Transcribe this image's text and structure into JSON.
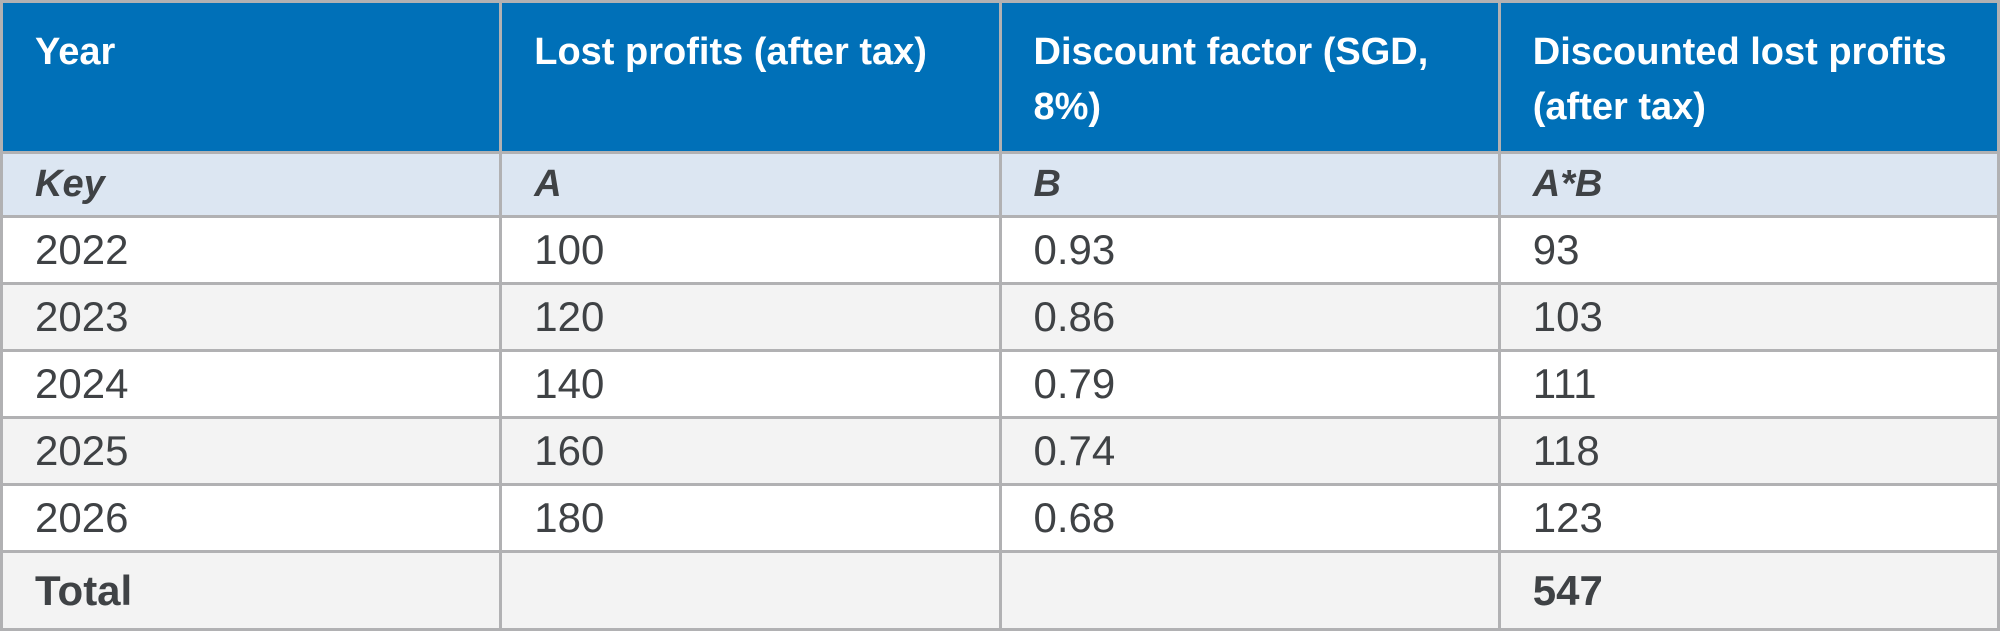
{
  "chart_data": {
    "type": "table",
    "headers": [
      "Year",
      "Lost profits (after tax)",
      "Discount factor (SGD, 8%)",
      "Discounted lost profits (after tax)"
    ],
    "key_row": [
      "Key",
      "A",
      "B",
      "A*B"
    ],
    "rows": [
      [
        "2022",
        "100",
        "0.93",
        "93"
      ],
      [
        "2023",
        "120",
        "0.86",
        "103"
      ],
      [
        "2024",
        "140",
        "0.79",
        "111"
      ],
      [
        "2025",
        "160",
        "0.74",
        "118"
      ],
      [
        "2026",
        "180",
        "0.68",
        "123"
      ]
    ],
    "total_row": {
      "label": "Total",
      "value": "547"
    }
  },
  "colors": {
    "header_bg": "#0070B8",
    "header_text": "#FFFFFF",
    "key_row_bg": "#DCE6F2",
    "row_bg": "#FFFFFF",
    "row_alt_bg": "#F3F3F3",
    "total_row_bg": "#F3F3F3",
    "border": "#B1B1B3",
    "body_text": "#3F4245"
  }
}
